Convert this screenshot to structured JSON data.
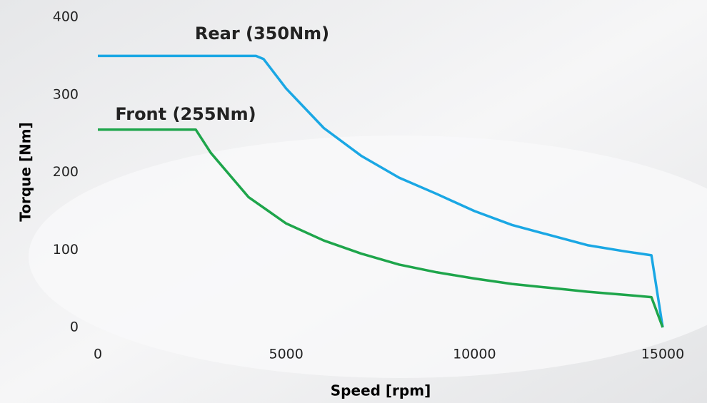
{
  "chart_data": {
    "type": "line",
    "xlabel": "Speed [rpm]",
    "ylabel": "Torque [Nm]",
    "xlim": [
      0,
      15000
    ],
    "xticks": [
      0,
      5000,
      10000,
      15000
    ],
    "ylim": [
      0,
      400
    ],
    "yticks": [
      0,
      100,
      200,
      300,
      400
    ],
    "grid": false,
    "series": [
      {
        "name": "Rear (350Nm)",
        "color": "#1aa7e4",
        "x": [
          0,
          4200,
          4400,
          5000,
          6000,
          7000,
          8000,
          9000,
          10000,
          11000,
          12000,
          13000,
          14000,
          14700,
          15000
        ],
        "values": [
          350,
          350,
          346,
          308,
          257,
          221,
          193,
          172,
          150,
          132,
          119,
          106,
          98,
          93,
          0
        ]
      },
      {
        "name": "Front (255Nm)",
        "color": "#1ea54b",
        "x": [
          0,
          2600,
          3000,
          4000,
          5000,
          6000,
          7000,
          8000,
          9000,
          10000,
          11000,
          12000,
          13000,
          14000,
          14700,
          15000
        ],
        "values": [
          255,
          255,
          225,
          168,
          134,
          112,
          95,
          81,
          71,
          63,
          56,
          51,
          46,
          42,
          39,
          0
        ]
      }
    ]
  }
}
